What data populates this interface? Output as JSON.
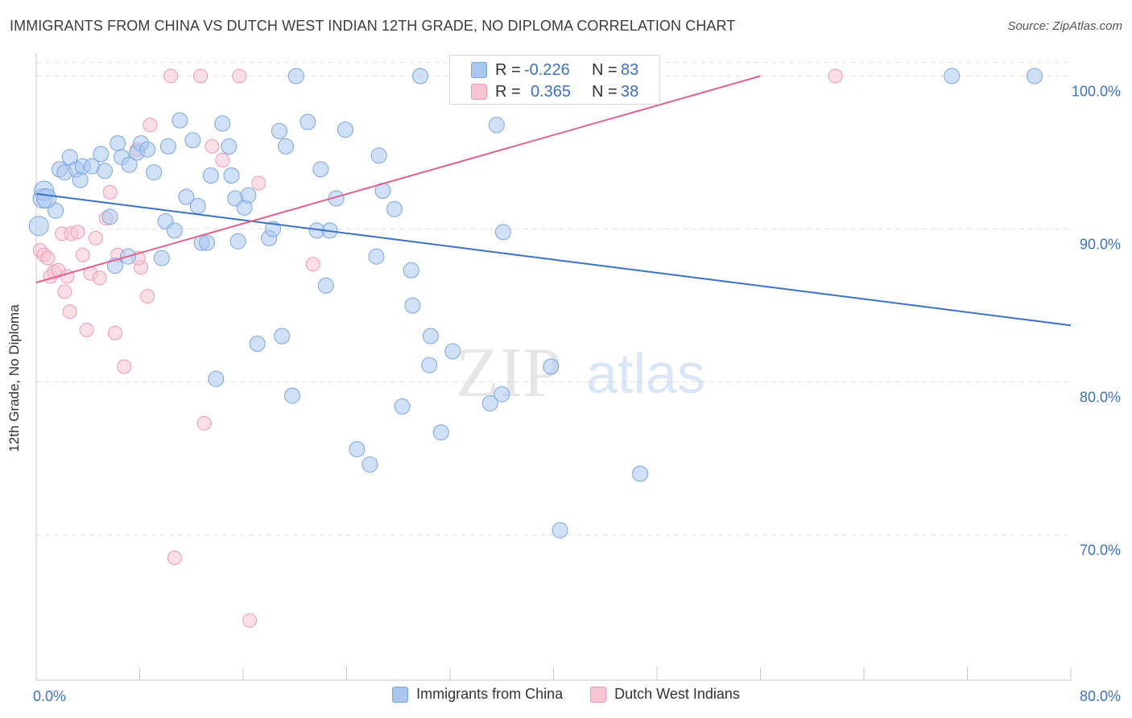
{
  "header": {
    "title": "IMMIGRANTS FROM CHINA VS DUTCH WEST INDIAN 12TH GRADE, NO DIPLOMA CORRELATION CHART",
    "source": "Source: ZipAtlas.com"
  },
  "watermark": {
    "zip": "ZIP",
    "atlas": "atlas"
  },
  "stats": [
    {
      "r_label": "R =",
      "r_value": "-0.226",
      "n_label": "N =",
      "n_value": "83",
      "color": "#a9c6ef",
      "border": "#7aa6e0"
    },
    {
      "r_label": "R =",
      "r_value": "0.365",
      "n_label": "N =",
      "n_value": "38",
      "color": "#f7c4d3",
      "border": "#ee9ab4"
    }
  ],
  "legend": [
    {
      "label": "Immigrants from China",
      "color": "#a9c6ef",
      "border": "#7aa6e0"
    },
    {
      "label": "Dutch West Indians",
      "color": "#f7c4d3",
      "border": "#ee9ab4"
    }
  ],
  "chart_data": {
    "type": "scatter",
    "title": "IMMIGRANTS FROM CHINA VS DUTCH WEST INDIAN 12TH GRADE, NO DIPLOMA CORRELATION CHART",
    "xlabel": "",
    "ylabel": "12th Grade, No Diploma",
    "xlim": [
      0,
      80
    ],
    "ylim": [
      60.5,
      101.5
    ],
    "x_tick_labels": [
      {
        "value": 0,
        "label": "0.0%"
      },
      {
        "value": 80,
        "label": "80.0%"
      }
    ],
    "y_tick_labels": [
      {
        "value": 100,
        "label": "100.0%"
      },
      {
        "value": 90,
        "label": "90.0%"
      },
      {
        "value": 80,
        "label": "80.0%"
      },
      {
        "value": 70,
        "label": "70.0%"
      }
    ],
    "grid": true,
    "legend_position": "bottom",
    "colors": {
      "china": "#3b72c4",
      "dutch": "#e0628e",
      "axis_text": "#3b72c4"
    },
    "series": [
      {
        "name": "Immigrants from China",
        "r": -0.226,
        "n": 83,
        "trend": {
          "x": [
            0,
            80
          ],
          "y": [
            92.3,
            83.7
          ]
        },
        "points": [
          [
            0.5,
            92.0
          ],
          [
            0.6,
            92.5
          ],
          [
            1.5,
            91.2
          ],
          [
            1.8,
            93.9
          ],
          [
            2.2,
            93.7
          ],
          [
            2.6,
            94.7
          ],
          [
            3.1,
            93.9
          ],
          [
            3.4,
            93.2
          ],
          [
            3.6,
            94.1
          ],
          [
            4.3,
            94.1
          ],
          [
            5.0,
            94.9
          ],
          [
            5.3,
            93.8
          ],
          [
            5.7,
            90.8
          ],
          [
            6.1,
            87.6
          ],
          [
            6.3,
            95.6
          ],
          [
            6.6,
            94.7
          ],
          [
            7.1,
            88.2
          ],
          [
            7.2,
            94.2
          ],
          [
            7.8,
            95.0
          ],
          [
            8.1,
            95.6
          ],
          [
            8.6,
            95.2
          ],
          [
            9.1,
            93.7
          ],
          [
            9.7,
            88.1
          ],
          [
            10.0,
            90.5
          ],
          [
            10.2,
            95.4
          ],
          [
            10.7,
            89.9
          ],
          [
            11.1,
            97.1
          ],
          [
            11.6,
            92.1
          ],
          [
            12.1,
            95.8
          ],
          [
            12.5,
            91.5
          ],
          [
            12.8,
            89.1
          ],
          [
            13.2,
            89.1
          ],
          [
            13.5,
            93.5
          ],
          [
            13.9,
            80.2
          ],
          [
            14.4,
            96.9
          ],
          [
            14.9,
            95.4
          ],
          [
            15.1,
            93.5
          ],
          [
            15.4,
            92.0
          ],
          [
            15.6,
            89.2
          ],
          [
            16.1,
            91.4
          ],
          [
            16.4,
            92.2
          ],
          [
            17.1,
            82.5
          ],
          [
            18.0,
            89.4
          ],
          [
            18.3,
            90.0
          ],
          [
            18.8,
            96.4
          ],
          [
            19.0,
            83.0
          ],
          [
            19.3,
            95.4
          ],
          [
            19.8,
            79.1
          ],
          [
            20.1,
            100.0
          ],
          [
            21.0,
            97.0
          ],
          [
            21.7,
            89.9
          ],
          [
            22.0,
            93.9
          ],
          [
            22.4,
            86.3
          ],
          [
            22.7,
            89.9
          ],
          [
            23.2,
            92.0
          ],
          [
            23.9,
            96.5
          ],
          [
            24.8,
            75.6
          ],
          [
            25.8,
            74.6
          ],
          [
            26.3,
            88.2
          ],
          [
            26.5,
            94.8
          ],
          [
            26.8,
            92.5
          ],
          [
            27.7,
            91.3
          ],
          [
            28.3,
            78.4
          ],
          [
            29.0,
            87.3
          ],
          [
            29.1,
            85.0
          ],
          [
            29.7,
            100.0
          ],
          [
            30.4,
            81.1
          ],
          [
            30.5,
            83.0
          ],
          [
            31.3,
            76.7
          ],
          [
            32.2,
            82.0
          ],
          [
            33.0,
            100.0
          ],
          [
            35.1,
            78.6
          ],
          [
            35.6,
            96.8
          ],
          [
            36.0,
            79.2
          ],
          [
            36.1,
            89.8
          ],
          [
            39.8,
            81.0
          ],
          [
            40.5,
            70.3
          ],
          [
            46.7,
            74.0
          ],
          [
            70.8,
            100.0
          ],
          [
            77.2,
            100.0
          ],
          [
            0.2,
            90.2
          ],
          [
            0.8,
            92.0
          ],
          [
            36.4,
            100.0
          ]
        ]
      },
      {
        "name": "Dutch West Indians",
        "r": 0.365,
        "n": 38,
        "trend": {
          "x": [
            0,
            56
          ],
          "y": [
            86.5,
            100.0
          ]
        },
        "points": [
          [
            0.3,
            88.6
          ],
          [
            0.6,
            88.3
          ],
          [
            0.9,
            88.1
          ],
          [
            1.1,
            86.9
          ],
          [
            1.4,
            87.2
          ],
          [
            1.7,
            87.3
          ],
          [
            2.0,
            89.7
          ],
          [
            2.2,
            85.9
          ],
          [
            2.4,
            86.9
          ],
          [
            2.6,
            84.6
          ],
          [
            2.7,
            89.7
          ],
          [
            3.2,
            89.8
          ],
          [
            3.6,
            88.3
          ],
          [
            3.9,
            83.4
          ],
          [
            4.2,
            87.1
          ],
          [
            4.6,
            89.4
          ],
          [
            4.9,
            86.8
          ],
          [
            5.4,
            90.7
          ],
          [
            5.7,
            92.4
          ],
          [
            6.1,
            83.2
          ],
          [
            6.3,
            88.3
          ],
          [
            6.8,
            81.0
          ],
          [
            7.8,
            95.2
          ],
          [
            8.1,
            87.5
          ],
          [
            8.6,
            85.6
          ],
          [
            8.8,
            96.8
          ],
          [
            10.4,
            100.0
          ],
          [
            10.7,
            68.5
          ],
          [
            12.7,
            100.0
          ],
          [
            13.0,
            77.3
          ],
          [
            13.6,
            95.4
          ],
          [
            14.4,
            94.5
          ],
          [
            15.7,
            100.0
          ],
          [
            16.5,
            64.4
          ],
          [
            17.2,
            93.0
          ],
          [
            21.4,
            87.7
          ],
          [
            61.8,
            100.0
          ],
          [
            7.9,
            88.1
          ]
        ]
      }
    ]
  }
}
